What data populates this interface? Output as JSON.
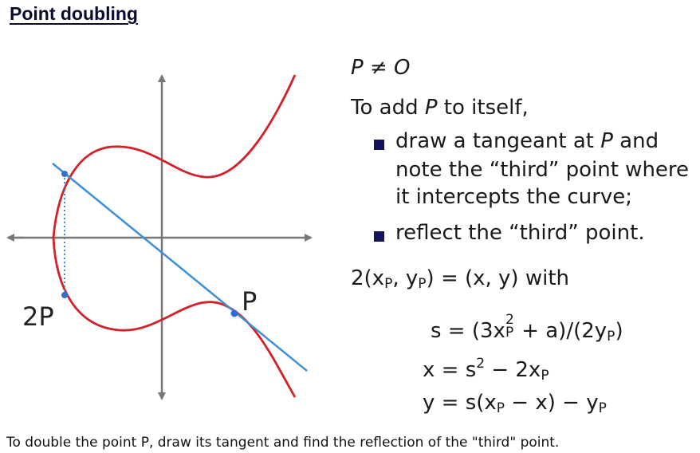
{
  "heading": "Point doubling",
  "figure": {
    "label_2p": "2P",
    "label_p": "P",
    "colors": {
      "curve": "#d42027",
      "tangent": "#3d8fd8",
      "axes": "#777777",
      "point": "#2f6fd0"
    }
  },
  "content": {
    "condition": {
      "p": "P",
      "neq": "≠",
      "o": "O"
    },
    "intro": {
      "text": "To add ",
      "p": "P",
      "rest": " to itself,"
    },
    "bullets": [
      {
        "l1a": "draw a tangeant at ",
        "l1p": "P",
        "l1b": " and",
        "l2": "note the “third” point where",
        "l3": "it intercepts the curve;"
      },
      {
        "l1a": "reflect the “third” point."
      }
    ],
    "formula_head": {
      "lhs": "2(x",
      "sub_p": "P",
      "mid": ", y",
      "sub_p2": "P",
      "rhs": ") = (x, y) with"
    },
    "formulas": {
      "s": {
        "a": "s = (3x",
        "sup": "2",
        "sub": "P",
        "b": " + a)/(2y",
        "sub2": "P",
        "c": ")"
      },
      "x": {
        "a": "x = s",
        "sup": "2",
        "b": " − 2x",
        "sub": "P"
      },
      "y": {
        "a": "y = s(x",
        "sub": "P",
        "b": " − x) − y",
        "sub2": "P"
      }
    }
  },
  "caption": "To double the point P, draw its tangent and find the reflection of the \"third\" point."
}
